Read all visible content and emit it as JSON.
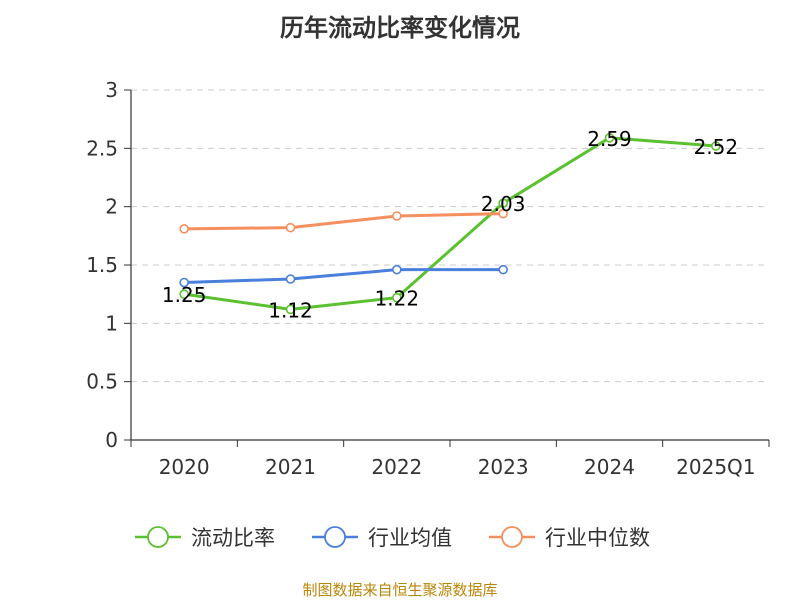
{
  "chart_data": {
    "type": "line",
    "title": "历年流动比率变化情况",
    "categories": [
      "2020",
      "2021",
      "2022",
      "2023",
      "2024",
      "2025Q1"
    ],
    "ylim": [
      0,
      3
    ],
    "yticks": [
      "0",
      "0.5",
      "1",
      "1.5",
      "2",
      "2.5",
      "3"
    ],
    "grid": true,
    "legend_position": "bottom",
    "series": [
      {
        "name": "流动比率",
        "color": "#5cc130",
        "values": [
          1.25,
          1.12,
          1.22,
          2.03,
          2.59,
          2.52
        ],
        "labels": [
          "1.25",
          "1.12",
          "1.22",
          "2.03",
          "2.59",
          "2.52"
        ]
      },
      {
        "name": "行业均值",
        "color": "#4a7fdc",
        "values": [
          1.35,
          1.38,
          1.46,
          1.46,
          null,
          null
        ]
      },
      {
        "name": "行业中位数",
        "color": "#f58f5e",
        "values": [
          1.81,
          1.82,
          1.92,
          1.94,
          null,
          null
        ]
      }
    ]
  },
  "source": "制图数据来自恒生聚源数据库"
}
